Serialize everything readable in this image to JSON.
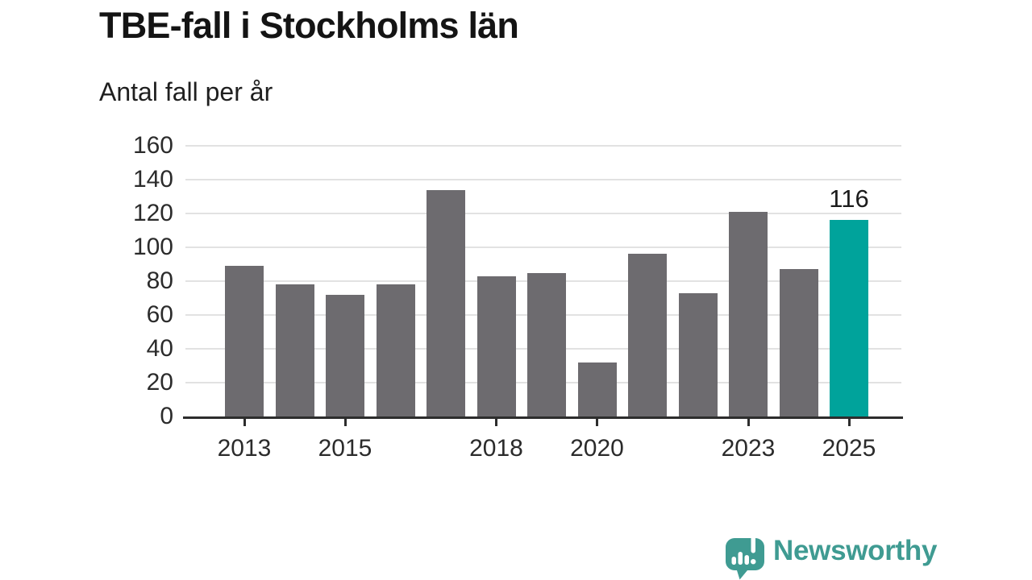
{
  "header": {
    "title": "TBE-fall i Stockholms län",
    "subtitle": "Antal fall per år"
  },
  "chart_data": {
    "type": "bar",
    "title": "TBE-fall i Stockholms län",
    "subtitle": "Antal fall per år",
    "categories": [
      "2013",
      "2014",
      "2015",
      "2016",
      "2017",
      "2018",
      "2019",
      "2020",
      "2021",
      "2022",
      "2023",
      "2024",
      "2025"
    ],
    "values": [
      89,
      78,
      72,
      78,
      134,
      83,
      85,
      32,
      96,
      73,
      121,
      87,
      116
    ],
    "highlight_index": 12,
    "highlight_label": "116",
    "x_tick_labels": [
      "2013",
      "2015",
      "2018",
      "2020",
      "2023",
      "2025"
    ],
    "y_ticks": [
      0,
      20,
      40,
      60,
      80,
      100,
      120,
      140,
      160
    ],
    "ylim": [
      0,
      160
    ],
    "xlabel": "",
    "ylabel": "Antal fall per år",
    "grid": "horizontal",
    "legend": "none",
    "colors": {
      "bar": "#6d6b6f",
      "highlight": "#00a39b",
      "grid": "#e2e2e2",
      "axis": "#2d2d2d",
      "tick_text": "#2b2b2b",
      "annotation_text": "#1c1c1c"
    }
  },
  "footer": {
    "brand": "Newsworthy",
    "brand_color": "#3f9b92",
    "logo_icon": "bar-chart-speech-bubble-icon"
  }
}
